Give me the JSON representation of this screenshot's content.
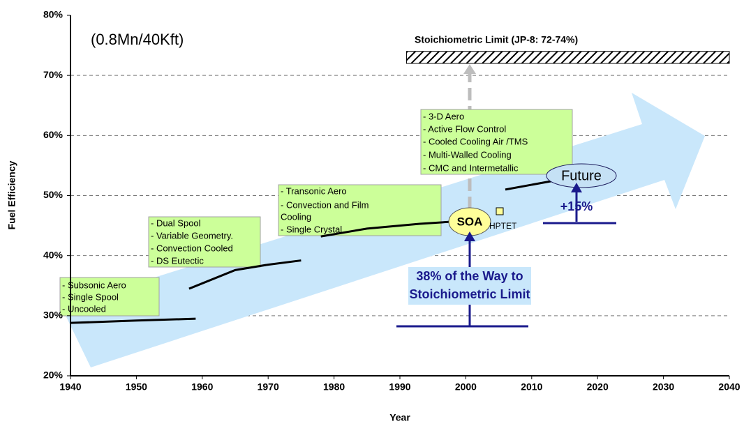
{
  "chart_data": {
    "type": "line",
    "xlabel": "Year",
    "ylabel": "Fuel Efficiency",
    "xlim": [
      1940,
      2040
    ],
    "xticks": [
      1940,
      1950,
      1960,
      1970,
      1980,
      1990,
      2000,
      2010,
      2020,
      2030,
      2040
    ],
    "ylim": [
      20,
      80
    ],
    "yticks": [
      {
        "value": 20,
        "label": "20%"
      },
      {
        "value": 30,
        "label": "30%"
      },
      {
        "value": 40,
        "label": "40%"
      },
      {
        "value": 50,
        "label": "50%"
      },
      {
        "value": 60,
        "label": "60%"
      },
      {
        "value": 70,
        "label": "70%"
      },
      {
        "value": 80,
        "label": "80%"
      }
    ],
    "grid": true,
    "series": [
      {
        "color": "#000000",
        "x": [
          1940,
          1950,
          1959
        ],
        "values": [
          28.8,
          29.2,
          29.5
        ]
      },
      {
        "color": "#000000",
        "x": [
          1958,
          1965,
          1970,
          1975
        ],
        "values": [
          34.5,
          37.6,
          38.5,
          39.2
        ]
      },
      {
        "color": "#000000",
        "x": [
          1978,
          1985,
          1993,
          2000
        ],
        "values": [
          43.2,
          44.5,
          45.3,
          45.8
        ]
      },
      {
        "color": "#000000",
        "x": [
          2006,
          2015
        ],
        "values": [
          51.0,
          52.8
        ]
      }
    ],
    "condition": "(0.8Mn/40Kft)",
    "limit": {
      "label": "Stoichiometric Limit (JP-8: 72-74%)",
      "band": [
        72,
        74
      ],
      "x": [
        1991,
        2040
      ]
    },
    "boxes": [
      [
        "- Subsonic Aero",
        "- Single Spool",
        "- Uncooled"
      ],
      [
        "- Dual Spool",
        "- Variable Geometry.",
        "- Convection Cooled",
        "- DS Eutectic"
      ],
      [
        "- Transonic Aero",
        "- Convection and  Film",
        "Cooling",
        "- Single Crystal"
      ],
      [
        "- 3-D Aero",
        "- Active Flow Control",
        "- Cooled Cooling Air /TMS",
        "- Multi-Walled Cooling",
        "- CMC and Intermetallic"
      ]
    ],
    "soa": "SOA",
    "hptet": "HPTET",
    "future": "Future",
    "gain": "+15%",
    "progress": [
      "38% of the Way to",
      "Stoichiometric Limit"
    ]
  }
}
